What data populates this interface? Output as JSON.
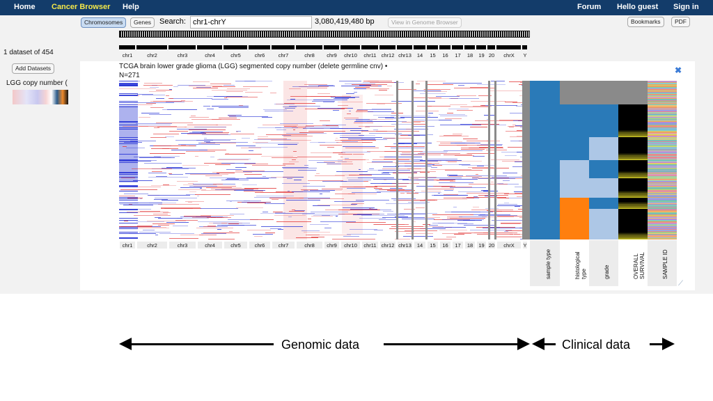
{
  "nav": {
    "home": "Home",
    "brand": "Cancer Browser",
    "help": "Help",
    "forum": "Forum",
    "greeting": "Hello guest",
    "sign_in": "Sign in"
  },
  "toolbar": {
    "chromosomes_label": "Chromosomes",
    "genes_label": "Genes",
    "search_label": "Search:",
    "search_value": "chr1-chrY",
    "bp_count": "3,080,419,480 bp",
    "view_genome_browser": "View in Genome Browser",
    "bookmarks": "Bookmarks",
    "pdf": "PDF"
  },
  "chromosomes": [
    "chr1",
    "chr2",
    "chr3",
    "chr4",
    "chr5",
    "chr6",
    "chr7",
    "chr8",
    "chr9",
    "chr10",
    "chr11",
    "chr12",
    "chr13",
    "14",
    "15",
    "16",
    "17",
    "18",
    "19",
    "20",
    "chrX",
    "Y"
  ],
  "sidebar": {
    "dataset_count": "1 dataset of 454",
    "add_datasets": "Add Datasets",
    "dataset_name": "LGG copy number ("
  },
  "panel": {
    "title": "TCGA brain lower grade glioma (LGG) segmented copy number (delete germline cnv) • N=271"
  },
  "clinical_columns": [
    "sample type",
    "histological type",
    "grade",
    "OVERALL SURVIVAL",
    "SAMPLE ID"
  ],
  "colors": {
    "nav_bg": "#133c6a",
    "brand": "#f5e94a",
    "amplification": "#e23a3a",
    "deletion": "#2a36d6",
    "clinical_blue": "#2a7ab8",
    "clinical_light_blue": "#adc7e6",
    "clinical_orange": "#ff7f0e",
    "clinical_gray": "#8a8a8a"
  },
  "annotation": {
    "genomic": "Genomic data",
    "clinical": "Clinical data"
  }
}
